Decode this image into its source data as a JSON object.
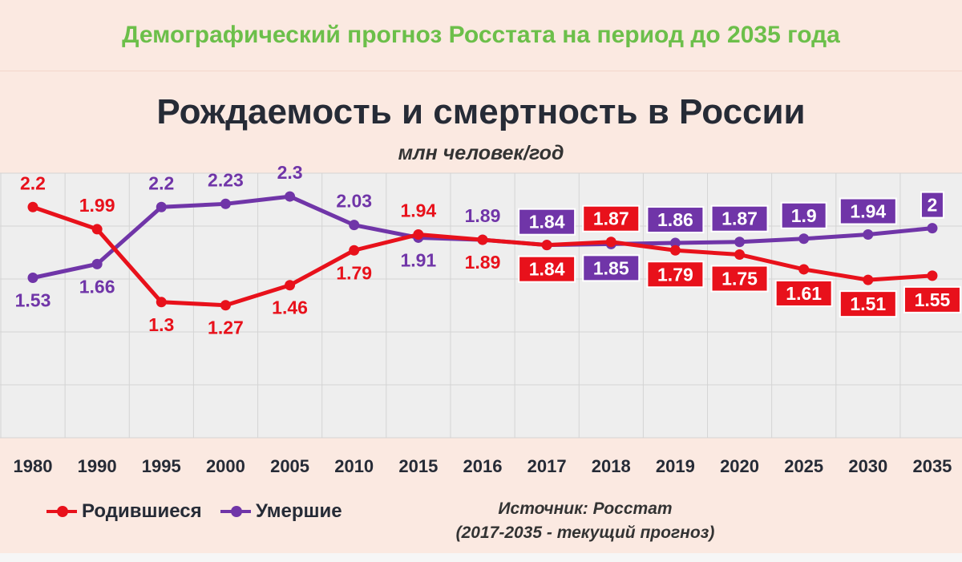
{
  "banner": "Демографический прогноз Росстата на период до 2035 года",
  "colors": {
    "births": "#e8111b",
    "deaths": "#7035a8",
    "banner": "#6cbf4a",
    "title": "#262b36",
    "plot_bg": "#eeeeee",
    "page_bg": "#fbe9e1"
  },
  "chart_data": {
    "type": "line",
    "title": "Рождаемость и смертность в России",
    "subtitle": "млн человек/год",
    "categories": [
      "1980",
      "1990",
      "1995",
      "2000",
      "2005",
      "2010",
      "2015",
      "2016",
      "2017",
      "2018",
      "2019",
      "2020",
      "2025",
      "2030",
      "2035"
    ],
    "series": [
      {
        "name": "Родившиеся",
        "color": "#e8111b",
        "values": [
          2.2,
          1.99,
          1.3,
          1.27,
          1.46,
          1.79,
          1.94,
          1.89,
          1.84,
          1.87,
          1.79,
          1.75,
          1.61,
          1.51,
          1.55
        ],
        "labels": [
          "2.2",
          "1.99",
          "1.3",
          "1.27",
          "1.46",
          "1.79",
          "1.94",
          "1.89",
          "1.84",
          "1.87",
          "1.79",
          "1.75",
          "1.61",
          "1.51",
          "1.55"
        ]
      },
      {
        "name": "Умершие",
        "color": "#7035a8",
        "values": [
          1.53,
          1.66,
          2.2,
          2.23,
          2.3,
          2.03,
          1.91,
          1.89,
          1.84,
          1.85,
          1.86,
          1.87,
          1.9,
          1.94,
          2.0
        ],
        "labels": [
          "1.53",
          "1.66",
          "2.2",
          "2.23",
          "2.3",
          "2.03",
          "1.91",
          "1.89",
          "1.84",
          "1.85",
          "1.86",
          "1.87",
          "1.9",
          "1.94",
          "2"
        ]
      }
    ],
    "grid": true,
    "legend_position": "bottom-left",
    "forecast_from": "2017"
  },
  "source": {
    "line1": "Источник: Росстат",
    "line2": "(2017-2035 - текущий прогноз)"
  }
}
